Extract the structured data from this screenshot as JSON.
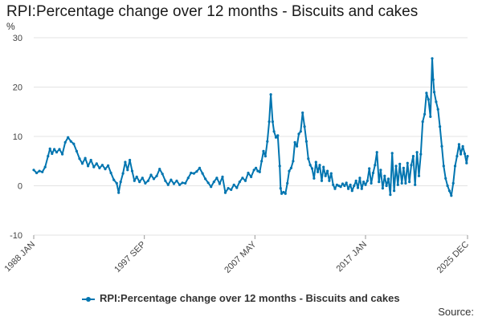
{
  "chart_data": {
    "type": "line",
    "title": "RPI:Percentage change over 12 months - Biscuits and cakes",
    "ylabel": "%",
    "xlabel": "",
    "ylim": [
      -10,
      30
    ],
    "yticks": [
      -10,
      0,
      10,
      20,
      30
    ],
    "xlim": [
      1988.0,
      2025.917
    ],
    "xticks": [
      {
        "label": "1988 JAN",
        "x": 1988.0
      },
      {
        "label": "1997 SEP",
        "x": 1997.667
      },
      {
        "label": "2007 MAY",
        "x": 2007.333
      },
      {
        "label": "2017 JAN",
        "x": 2017.0
      },
      {
        "label": "2025 DEC",
        "x": 2025.917
      }
    ],
    "grid": true,
    "legend_position": "bottom",
    "series": [
      {
        "name": "RPI:Percentage change over 12 months - Biscuits and cakes",
        "color": "#0075b0",
        "points": [
          [
            1988.0,
            3.2
          ],
          [
            1988.25,
            2.6
          ],
          [
            1988.5,
            3.0
          ],
          [
            1988.75,
            2.8
          ],
          [
            1989.0,
            3.8
          ],
          [
            1989.25,
            6.0
          ],
          [
            1989.42,
            7.5
          ],
          [
            1989.6,
            6.5
          ],
          [
            1989.8,
            7.4
          ],
          [
            1990.0,
            6.8
          ],
          [
            1990.25,
            7.4
          ],
          [
            1990.5,
            6.4
          ],
          [
            1990.75,
            8.8
          ],
          [
            1991.0,
            9.8
          ],
          [
            1991.25,
            9.0
          ],
          [
            1991.5,
            8.5
          ],
          [
            1991.75,
            7.0
          ],
          [
            1992.0,
            5.5
          ],
          [
            1992.25,
            4.5
          ],
          [
            1992.5,
            5.6
          ],
          [
            1992.75,
            4.0
          ],
          [
            1993.0,
            5.2
          ],
          [
            1993.25,
            3.8
          ],
          [
            1993.5,
            4.5
          ],
          [
            1993.75,
            3.6
          ],
          [
            1994.0,
            4.2
          ],
          [
            1994.25,
            3.4
          ],
          [
            1994.5,
            4.1
          ],
          [
            1994.75,
            2.6
          ],
          [
            1995.0,
            1.2
          ],
          [
            1995.25,
            0.5
          ],
          [
            1995.42,
            -1.4
          ],
          [
            1995.6,
            0.8
          ],
          [
            1995.8,
            2.5
          ],
          [
            1996.0,
            4.8
          ],
          [
            1996.2,
            3.2
          ],
          [
            1996.4,
            5.2
          ],
          [
            1996.6,
            3.0
          ],
          [
            1996.8,
            1.0
          ],
          [
            1997.0,
            1.8
          ],
          [
            1997.25,
            0.8
          ],
          [
            1997.5,
            1.6
          ],
          [
            1997.75,
            0.5
          ],
          [
            1998.0,
            1.0
          ],
          [
            1998.25,
            2.2
          ],
          [
            1998.5,
            1.4
          ],
          [
            1998.75,
            2.0
          ],
          [
            1999.0,
            3.4
          ],
          [
            1999.25,
            2.4
          ],
          [
            1999.5,
            1.0
          ],
          [
            1999.75,
            0.2
          ],
          [
            2000.0,
            1.2
          ],
          [
            2000.25,
            0.4
          ],
          [
            2000.5,
            1.0
          ],
          [
            2000.75,
            0.2
          ],
          [
            2001.0,
            0.6
          ],
          [
            2001.25,
            0.5
          ],
          [
            2001.5,
            1.6
          ],
          [
            2001.75,
            2.6
          ],
          [
            2002.0,
            2.5
          ],
          [
            2002.25,
            2.9
          ],
          [
            2002.5,
            3.6
          ],
          [
            2002.75,
            2.5
          ],
          [
            2003.0,
            1.4
          ],
          [
            2003.25,
            0.6
          ],
          [
            2003.5,
            -0.2
          ],
          [
            2003.75,
            0.8
          ],
          [
            2004.0,
            1.6
          ],
          [
            2004.25,
            0.4
          ],
          [
            2004.5,
            1.8
          ],
          [
            2004.75,
            -1.4
          ],
          [
            2005.0,
            -0.5
          ],
          [
            2005.25,
            -0.8
          ],
          [
            2005.5,
            0.2
          ],
          [
            2005.75,
            -0.4
          ],
          [
            2006.0,
            0.8
          ],
          [
            2006.25,
            1.6
          ],
          [
            2006.5,
            1.0
          ],
          [
            2006.75,
            2.6
          ],
          [
            2007.0,
            1.8
          ],
          [
            2007.25,
            3.2
          ],
          [
            2007.42,
            3.6
          ],
          [
            2007.58,
            3.0
          ],
          [
            2007.75,
            2.8
          ],
          [
            2007.92,
            5.0
          ],
          [
            2008.08,
            7.0
          ],
          [
            2008.25,
            6.0
          ],
          [
            2008.42,
            9.0
          ],
          [
            2008.58,
            13.0
          ],
          [
            2008.72,
            18.5
          ],
          [
            2008.88,
            13.0
          ],
          [
            2009.0,
            11.0
          ],
          [
            2009.17,
            9.8
          ],
          [
            2009.33,
            10.2
          ],
          [
            2009.5,
            4.0
          ],
          [
            2009.58,
            -0.5
          ],
          [
            2009.67,
            -1.6
          ],
          [
            2009.83,
            -1.3
          ],
          [
            2010.0,
            -1.6
          ],
          [
            2010.17,
            0.5
          ],
          [
            2010.33,
            3.0
          ],
          [
            2010.5,
            3.6
          ],
          [
            2010.67,
            5.0
          ],
          [
            2010.83,
            8.8
          ],
          [
            2011.0,
            8.0
          ],
          [
            2011.17,
            10.5
          ],
          [
            2011.33,
            11.0
          ],
          [
            2011.5,
            14.8
          ],
          [
            2011.67,
            12.0
          ],
          [
            2011.83,
            9.0
          ],
          [
            2012.0,
            5.5
          ],
          [
            2012.17,
            4.2
          ],
          [
            2012.33,
            3.5
          ],
          [
            2012.5,
            1.5
          ],
          [
            2012.67,
            4.8
          ],
          [
            2012.83,
            2.8
          ],
          [
            2013.0,
            4.2
          ],
          [
            2013.17,
            1.0
          ],
          [
            2013.33,
            3.8
          ],
          [
            2013.5,
            2.0
          ],
          [
            2013.67,
            3.0
          ],
          [
            2013.83,
            1.0
          ],
          [
            2014.0,
            2.5
          ],
          [
            2014.17,
            0.2
          ],
          [
            2014.33,
            -0.6
          ],
          [
            2014.5,
            0.2
          ],
          [
            2014.67,
            0.0
          ],
          [
            2014.83,
            -0.2
          ],
          [
            2015.0,
            0.4
          ],
          [
            2015.17,
            0.0
          ],
          [
            2015.33,
            0.6
          ],
          [
            2015.5,
            -0.6
          ],
          [
            2015.67,
            0.2
          ],
          [
            2015.83,
            -1.0
          ],
          [
            2016.0,
            0.0
          ],
          [
            2016.17,
            1.0
          ],
          [
            2016.33,
            -0.4
          ],
          [
            2016.5,
            1.6
          ],
          [
            2016.67,
            -0.6
          ],
          [
            2016.83,
            0.8
          ],
          [
            2017.0,
            0.2
          ],
          [
            2017.17,
            1.0
          ],
          [
            2017.33,
            3.5
          ],
          [
            2017.5,
            0.5
          ],
          [
            2017.67,
            2.6
          ],
          [
            2017.83,
            4.2
          ],
          [
            2018.0,
            6.8
          ],
          [
            2018.17,
            0.8
          ],
          [
            2018.33,
            3.2
          ],
          [
            2018.5,
            -0.5
          ],
          [
            2018.67,
            2.0
          ],
          [
            2018.83,
            0.0
          ],
          [
            2019.0,
            1.4
          ],
          [
            2019.17,
            -1.8
          ],
          [
            2019.33,
            6.6
          ],
          [
            2019.5,
            -1.0
          ],
          [
            2019.67,
            4.0
          ],
          [
            2019.83,
            0.2
          ],
          [
            2020.0,
            4.4
          ],
          [
            2020.17,
            0.5
          ],
          [
            2020.33,
            3.6
          ],
          [
            2020.5,
            0.5
          ],
          [
            2020.67,
            4.6
          ],
          [
            2020.83,
            0.8
          ],
          [
            2021.0,
            4.2
          ],
          [
            2021.17,
            6.0
          ],
          [
            2021.33,
            0.2
          ],
          [
            2021.5,
            6.8
          ],
          [
            2021.67,
            2.0
          ],
          [
            2021.83,
            6.4
          ],
          [
            2022.0,
            13.0
          ],
          [
            2022.17,
            14.5
          ],
          [
            2022.33,
            18.8
          ],
          [
            2022.5,
            17.5
          ],
          [
            2022.67,
            14.0
          ],
          [
            2022.83,
            25.8
          ],
          [
            2022.92,
            21.5
          ],
          [
            2023.0,
            19.0
          ],
          [
            2023.17,
            17.0
          ],
          [
            2023.33,
            15.5
          ],
          [
            2023.5,
            12.0
          ],
          [
            2023.67,
            8.0
          ],
          [
            2023.83,
            4.0
          ],
          [
            2024.0,
            1.5
          ],
          [
            2024.17,
            0.0
          ],
          [
            2024.33,
            -1.0
          ],
          [
            2024.5,
            -2.0
          ],
          [
            2024.67,
            0.5
          ],
          [
            2024.83,
            4.0
          ],
          [
            2025.0,
            6.0
          ],
          [
            2025.17,
            8.4
          ],
          [
            2025.33,
            6.4
          ],
          [
            2025.5,
            8.0
          ],
          [
            2025.67,
            6.5
          ],
          [
            2025.83,
            4.6
          ],
          [
            2025.917,
            6.0
          ]
        ]
      }
    ]
  },
  "footer": {
    "source_label": "Source:"
  }
}
